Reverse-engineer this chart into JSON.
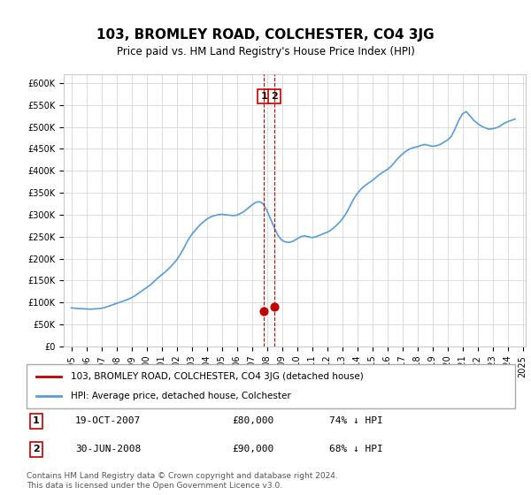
{
  "title": "103, BROMLEY ROAD, COLCHESTER, CO4 3JG",
  "subtitle": "Price paid vs. HM Land Registry's House Price Index (HPI)",
  "legend_line1": "103, BROMLEY ROAD, COLCHESTER, CO4 3JG (detached house)",
  "legend_line2": "HPI: Average price, detached house, Colchester",
  "annotation1": {
    "label": "1",
    "date_str": "19-OCT-2007",
    "price": 80000,
    "hpi_pct": "74% ↓ HPI",
    "x_year": 2007.8
  },
  "annotation2": {
    "label": "2",
    "date_str": "30-JUN-2008",
    "price": 90000,
    "hpi_pct": "68% ↓ HPI",
    "x_year": 2008.5
  },
  "footer1": "Contains HM Land Registry data © Crown copyright and database right 2024.",
  "footer2": "This data is licensed under the Open Government Licence v3.0.",
  "hpi_color": "#5b9bd5",
  "sale_color": "#c00000",
  "vline_color": "#c00000",
  "ylim": [
    0,
    620000
  ],
  "yticks": [
    0,
    50000,
    100000,
    150000,
    200000,
    250000,
    300000,
    350000,
    400000,
    450000,
    500000,
    550000,
    600000
  ],
  "hpi_data": {
    "years": [
      1995.0,
      1995.25,
      1995.5,
      1995.75,
      1996.0,
      1996.25,
      1996.5,
      1996.75,
      1997.0,
      1997.25,
      1997.5,
      1997.75,
      1998.0,
      1998.25,
      1998.5,
      1998.75,
      1999.0,
      1999.25,
      1999.5,
      1999.75,
      2000.0,
      2000.25,
      2000.5,
      2000.75,
      2001.0,
      2001.25,
      2001.5,
      2001.75,
      2002.0,
      2002.25,
      2002.5,
      2002.75,
      2003.0,
      2003.25,
      2003.5,
      2003.75,
      2004.0,
      2004.25,
      2004.5,
      2004.75,
      2005.0,
      2005.25,
      2005.5,
      2005.75,
      2006.0,
      2006.25,
      2006.5,
      2006.75,
      2007.0,
      2007.25,
      2007.5,
      2007.75,
      2008.0,
      2008.25,
      2008.5,
      2008.75,
      2009.0,
      2009.25,
      2009.5,
      2009.75,
      2010.0,
      2010.25,
      2010.5,
      2010.75,
      2011.0,
      2011.25,
      2011.5,
      2011.75,
      2012.0,
      2012.25,
      2012.5,
      2012.75,
      2013.0,
      2013.25,
      2013.5,
      2013.75,
      2014.0,
      2014.25,
      2014.5,
      2014.75,
      2015.0,
      2015.25,
      2015.5,
      2015.75,
      2016.0,
      2016.25,
      2016.5,
      2016.75,
      2017.0,
      2017.25,
      2017.5,
      2017.75,
      2018.0,
      2018.25,
      2018.5,
      2018.75,
      2019.0,
      2019.25,
      2019.5,
      2019.75,
      2020.0,
      2020.25,
      2020.5,
      2020.75,
      2021.0,
      2021.25,
      2021.5,
      2021.75,
      2022.0,
      2022.25,
      2022.5,
      2022.75,
      2023.0,
      2023.25,
      2023.5,
      2023.75,
      2024.0,
      2024.25,
      2024.5
    ],
    "values": [
      88000,
      87000,
      86500,
      86000,
      85500,
      85000,
      85500,
      86000,
      87000,
      89000,
      92000,
      95000,
      98000,
      101000,
      104000,
      107000,
      111000,
      116000,
      122000,
      128000,
      134000,
      140000,
      148000,
      156000,
      163000,
      170000,
      178000,
      187000,
      197000,
      210000,
      225000,
      242000,
      255000,
      265000,
      275000,
      283000,
      290000,
      295000,
      298000,
      300000,
      301000,
      300000,
      299000,
      298000,
      299000,
      303000,
      308000,
      315000,
      322000,
      328000,
      330000,
      325000,
      310000,
      290000,
      270000,
      252000,
      242000,
      238000,
      237000,
      240000,
      245000,
      250000,
      252000,
      250000,
      248000,
      250000,
      253000,
      257000,
      260000,
      265000,
      272000,
      280000,
      290000,
      302000,
      318000,
      335000,
      348000,
      358000,
      366000,
      372000,
      378000,
      385000,
      392000,
      398000,
      403000,
      410000,
      420000,
      430000,
      438000,
      445000,
      450000,
      453000,
      455000,
      458000,
      460000,
      458000,
      456000,
      457000,
      460000,
      465000,
      470000,
      478000,
      495000,
      515000,
      530000,
      535000,
      525000,
      515000,
      508000,
      502000,
      498000,
      495000,
      496000,
      498000,
      502000,
      508000,
      512000,
      515000,
      518000
    ]
  },
  "sale_data": {
    "x": [
      2007.8,
      2008.5
    ],
    "y": [
      80000,
      90000
    ]
  },
  "xticks": [
    1995,
    1996,
    1997,
    1998,
    1999,
    2000,
    2001,
    2002,
    2003,
    2004,
    2005,
    2006,
    2007,
    2008,
    2009,
    2010,
    2011,
    2012,
    2013,
    2014,
    2015,
    2016,
    2017,
    2018,
    2019,
    2020,
    2021,
    2022,
    2023,
    2024,
    2025
  ],
  "grid_color": "#d0d0d0",
  "bg_color": "#ffffff"
}
